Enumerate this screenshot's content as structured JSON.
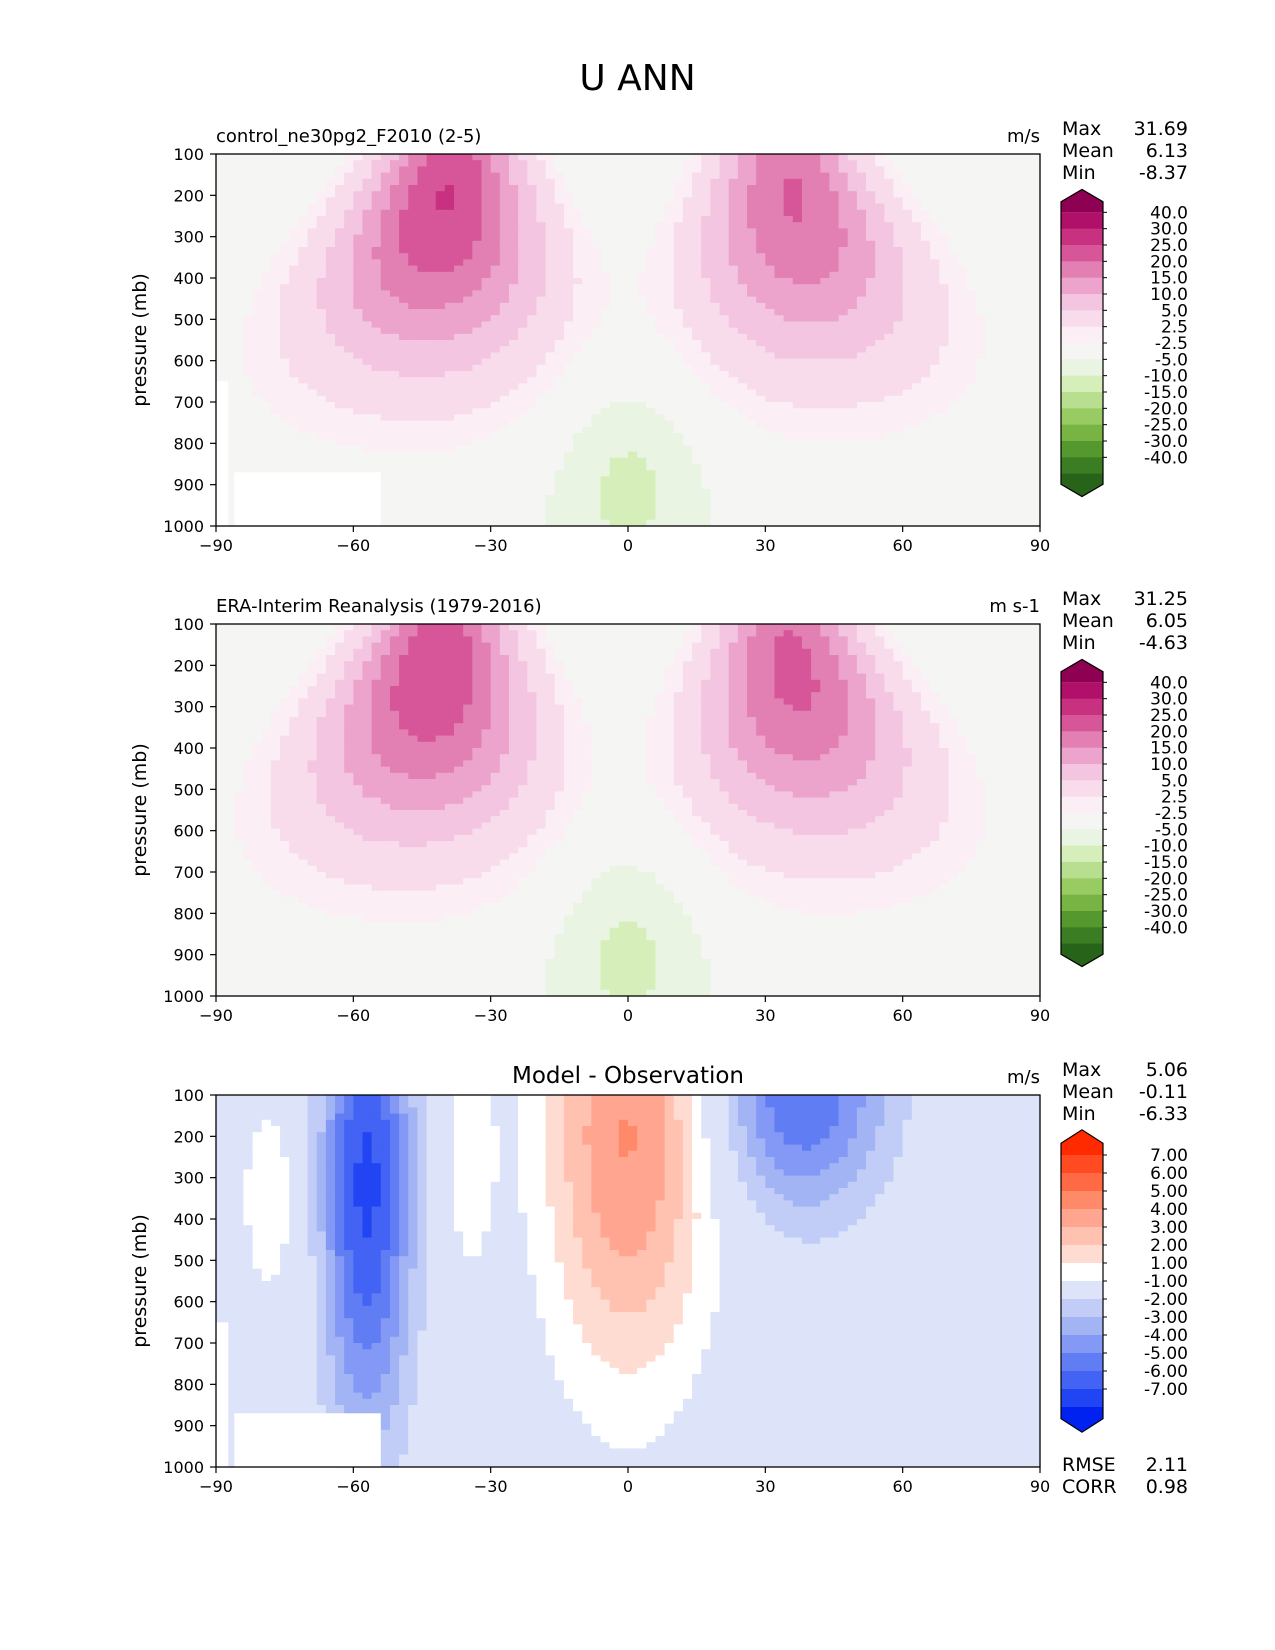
{
  "figure": {
    "title": "U ANN"
  },
  "chart_data": [
    {
      "type": "contour",
      "title": "control_ne30pg2_F2010 (2-5)",
      "units": "m/s",
      "ylabel": "pressure (mb)",
      "xlim": [
        -90,
        90
      ],
      "ylim": [
        1000,
        100
      ],
      "xticks": [
        "−90",
        "−60",
        "−30",
        "0",
        "30",
        "60",
        "90"
      ],
      "yticks": [
        "100",
        "200",
        "300",
        "400",
        "500",
        "600",
        "700",
        "800",
        "900",
        "1000"
      ],
      "stats": [
        {
          "label": "Max",
          "value": "31.69"
        },
        {
          "label": "Mean",
          "value": "6.13"
        },
        {
          "label": "Min",
          "value": "-8.37"
        }
      ],
      "colorbar": {
        "labels": [
          "40.0",
          "30.0",
          "25.0",
          "20.0",
          "15.0",
          "10.0",
          "5.0",
          "2.5",
          "-2.5",
          "-5.0",
          "-10.0",
          "-15.0",
          "-20.0",
          "-25.0",
          "-30.0",
          "-40.0"
        ],
        "colors_top_to_bottom": [
          "#8e0152",
          "#b0106a",
          "#c7317f",
          "#d7569a",
          "#e280b4",
          "#eca4cd",
          "#f3c5e0",
          "#f8dcec",
          "#fbeef4",
          "#f5f5f3",
          "#eaf4e2",
          "#d5eeba",
          "#b7df8f",
          "#98cc63",
          "#77b443",
          "#55982e",
          "#3a7d22",
          "#276419"
        ]
      },
      "ridges": [
        {
          "lat": -40,
          "p_core": 210,
          "u_max": 31.7
        },
        {
          "lat": 36,
          "p_core": 210,
          "u_max": 27
        }
      ]
    },
    {
      "type": "contour",
      "title": "ERA-Interim Reanalysis (1979-2016)",
      "units": "m s-1",
      "ylabel": "pressure (mb)",
      "xlim": [
        -90,
        90
      ],
      "ylim": [
        1000,
        100
      ],
      "xticks": [
        "−90",
        "−60",
        "−30",
        "0",
        "30",
        "60",
        "90"
      ],
      "yticks": [
        "100",
        "200",
        "300",
        "400",
        "500",
        "600",
        "700",
        "800",
        "900",
        "1000"
      ],
      "stats": [
        {
          "label": "Max",
          "value": "31.25"
        },
        {
          "label": "Mean",
          "value": "6.05"
        },
        {
          "label": "Min",
          "value": "-4.63"
        }
      ],
      "colorbar": {
        "labels": [
          "40.0",
          "30.0",
          "25.0",
          "20.0",
          "15.0",
          "10.0",
          "5.0",
          "2.5",
          "-2.5",
          "-5.0",
          "-10.0",
          "-15.0",
          "-20.0",
          "-25.0",
          "-30.0",
          "-40.0"
        ],
        "colors_top_to_bottom": [
          "#8e0152",
          "#b0106a",
          "#c7317f",
          "#d7569a",
          "#e280b4",
          "#eca4cd",
          "#f3c5e0",
          "#f8dcec",
          "#fbeef4",
          "#f5f5f3",
          "#eaf4e2",
          "#d5eeba",
          "#b7df8f",
          "#98cc63",
          "#77b443",
          "#55982e",
          "#3a7d22",
          "#276419"
        ]
      },
      "ridges": [
        {
          "lat": -42,
          "p_core": 210,
          "u_max": 31.3
        },
        {
          "lat": 36,
          "p_core": 210,
          "u_max": 28
        }
      ]
    },
    {
      "type": "contour",
      "title": "Model - Observation",
      "units": "m/s",
      "ylabel": "pressure (mb)",
      "xlim": [
        -90,
        90
      ],
      "ylim": [
        1000,
        100
      ],
      "xticks": [
        "−90",
        "−60",
        "−30",
        "0",
        "30",
        "60",
        "90"
      ],
      "yticks": [
        "100",
        "200",
        "300",
        "400",
        "500",
        "600",
        "700",
        "800",
        "900",
        "1000"
      ],
      "stats": [
        {
          "label": "Max",
          "value": "5.06"
        },
        {
          "label": "Mean",
          "value": "-0.11"
        },
        {
          "label": "Min",
          "value": "-6.33"
        }
      ],
      "extra_stats": [
        {
          "label": "RMSE",
          "value": "2.11"
        },
        {
          "label": "CORR",
          "value": "0.98"
        }
      ],
      "colorbar": {
        "labels": [
          "7.00",
          "6.00",
          "5.00",
          "4.00",
          "3.00",
          "2.00",
          "1.00",
          "-1.00",
          "-2.00",
          "-3.00",
          "-4.00",
          "-5.00",
          "-6.00",
          "-7.00"
        ],
        "colors_top_to_bottom": [
          "#ff2a00",
          "#ff4a22",
          "#ff6a45",
          "#ff8a6a",
          "#ffa590",
          "#ffc2b0",
          "#ffdcd2",
          "#ffffff",
          "#dde4fa",
          "#c2cdf7",
          "#a3b4f5",
          "#8399f5",
          "#617df3",
          "#4263f4",
          "#2245f3",
          "#0022f0"
        ]
      },
      "anomalies": [
        {
          "lat": -57,
          "p": 320,
          "du": -6.3
        },
        {
          "lat": 0,
          "p": 200,
          "du": 5.1
        },
        {
          "lat": 38,
          "p": 100,
          "du": -5
        }
      ]
    }
  ]
}
